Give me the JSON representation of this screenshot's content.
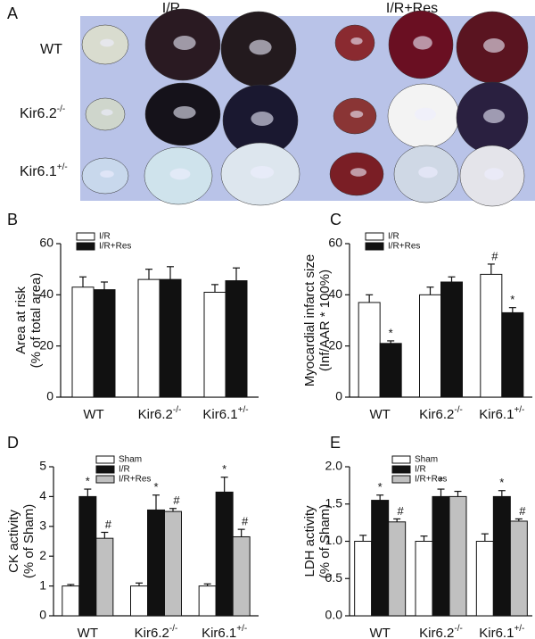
{
  "panel_a": {
    "label": "A",
    "columns": [
      "I/R",
      "I/R+Res"
    ],
    "rows": [
      "WT",
      "Kir6.2-/-",
      "Kir6.1+/-"
    ]
  },
  "chart_data": [
    {
      "type": "bar",
      "panel": "B",
      "ylabel": [
        "Area at risk",
        "(% of total area)"
      ],
      "categories": [
        "WT",
        "Kir6.2-/-",
        "Kir6.1+/-"
      ],
      "series": [
        {
          "name": "I/R",
          "color": "#ffffff",
          "values": [
            43,
            46,
            41
          ],
          "errors": [
            4,
            4,
            3
          ]
        },
        {
          "name": "I/R+Res",
          "color": "#111111",
          "values": [
            42,
            46,
            45.5
          ],
          "errors": [
            3,
            5,
            5
          ]
        }
      ],
      "ylim": [
        0,
        60
      ],
      "yticks": [
        0,
        20,
        40,
        60
      ],
      "legend": "upper left"
    },
    {
      "type": "bar",
      "panel": "C",
      "ylabel": [
        "Myocardial infarct size",
        "(Inf/AAR * 100%)"
      ],
      "categories": [
        "WT",
        "Kir6.2-/-",
        "Kir6.1+/-"
      ],
      "series": [
        {
          "name": "I/R",
          "color": "#ffffff",
          "values": [
            37,
            40,
            48
          ],
          "errors": [
            3,
            3,
            4
          ],
          "markers": [
            null,
            null,
            "#"
          ]
        },
        {
          "name": "I/R+Res",
          "color": "#111111",
          "values": [
            21,
            45,
            33
          ],
          "errors": [
            1,
            2,
            2
          ],
          "markers": [
            "*",
            null,
            "*"
          ]
        }
      ],
      "ylim": [
        0,
        60
      ],
      "yticks": [
        0,
        20,
        40,
        60
      ],
      "legend": "upper left"
    },
    {
      "type": "bar",
      "panel": "D",
      "ylabel": [
        "CK activity",
        "(% of Sham)"
      ],
      "categories": [
        "WT",
        "Kir6.2-/-",
        "Kir6.1+/-"
      ],
      "series": [
        {
          "name": "Sham",
          "color": "#ffffff",
          "values": [
            1,
            1,
            1
          ],
          "errors": [
            0.05,
            0.1,
            0.07
          ]
        },
        {
          "name": "I/R",
          "color": "#111111",
          "values": [
            4.0,
            3.55,
            4.15
          ],
          "errors": [
            0.25,
            0.5,
            0.5
          ],
          "markers": [
            "*",
            "*",
            "*"
          ]
        },
        {
          "name": "I/R+Res",
          "color": "#c0c0c0",
          "values": [
            2.6,
            3.5,
            2.65
          ],
          "errors": [
            0.2,
            0.1,
            0.25
          ],
          "markers": [
            "#",
            "#",
            "#"
          ]
        }
      ],
      "ylim": [
        0,
        5
      ],
      "yticks": [
        0,
        1,
        2,
        3,
        4,
        5
      ],
      "legend": "upper left"
    },
    {
      "type": "bar",
      "panel": "E",
      "ylabel": [
        "LDH activity",
        "(% of Sham)"
      ],
      "categories": [
        "WT",
        "Kir6.2-/-",
        "Kir6.1+/-"
      ],
      "series": [
        {
          "name": "Sham",
          "color": "#ffffff",
          "values": [
            1,
            1,
            1
          ],
          "errors": [
            0.08,
            0.07,
            0.1
          ]
        },
        {
          "name": "I/R",
          "color": "#111111",
          "values": [
            1.55,
            1.6,
            1.6
          ],
          "errors": [
            0.07,
            0.1,
            0.08
          ],
          "markers": [
            "*",
            "*",
            "*"
          ]
        },
        {
          "name": "I/R+Res",
          "color": "#c0c0c0",
          "values": [
            1.26,
            1.6,
            1.27
          ],
          "errors": [
            0.04,
            0.07,
            0.03
          ],
          "markers": [
            "#",
            null,
            "#"
          ]
        }
      ],
      "ylim": [
        0,
        2.0
      ],
      "yticks": [
        {
          "value": 0,
          "label": "0.0"
        },
        {
          "value": 0.5,
          "label": "0.5"
        },
        {
          "value": 1.0,
          "label": "1.0"
        },
        {
          "value": 1.5,
          "label": "1.5"
        },
        {
          "value": 2.0,
          "label": "2.0"
        }
      ],
      "legend": "upper left"
    }
  ]
}
